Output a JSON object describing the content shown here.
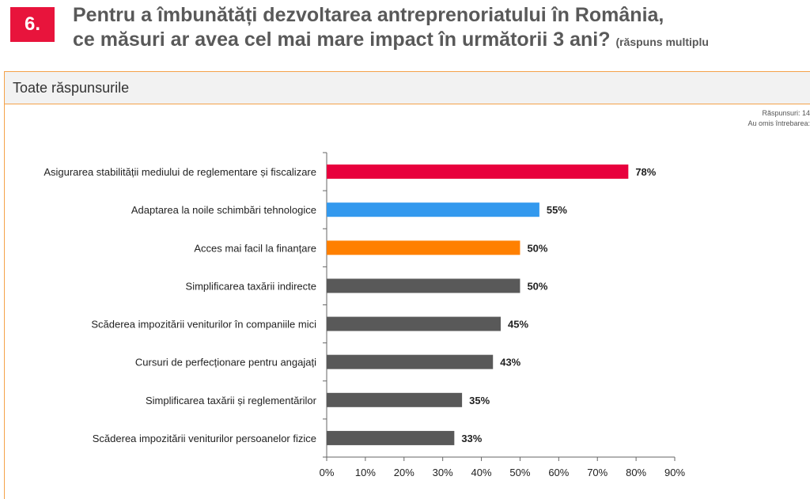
{
  "question": {
    "number": "6.",
    "title_line1": "Pentru a îmbunătăți dezvoltarea antreprenoriatului în România,",
    "title_line2": "ce măsuri ar avea cel mai mare impact în următorii 3 ani?",
    "title_note": "(răspuns multiplu"
  },
  "panel": {
    "header": "Toate răspunsurile",
    "stats_answers": "Răspunsuri: 14",
    "stats_omitted": "Au omis întrebarea:"
  },
  "chart_data": {
    "type": "bar",
    "orientation": "horizontal",
    "categories": [
      "Asigurarea stabilității mediului de reglementare și fiscalizare",
      "Adaptarea la noile schimbări tehnologice",
      "Acces mai facil la finanțare",
      "Simplificarea taxării indirecte",
      "Scăderea impozitării veniturilor în companiile mici",
      "Cursuri de perfecționare pentru angajați",
      "Simplificarea taxării și reglementărilor",
      "Scăderea impozitării veniturilor persoanelor fizice"
    ],
    "values": [
      78,
      55,
      50,
      50,
      45,
      43,
      35,
      33
    ],
    "value_labels": [
      "78%",
      "55%",
      "50%",
      "50%",
      "45%",
      "43%",
      "35%",
      "33%"
    ],
    "colors": [
      "#e8003d",
      "#3399ee",
      "#ff8000",
      "#595959",
      "#595959",
      "#595959",
      "#595959",
      "#595959"
    ],
    "xlim": [
      0,
      90
    ],
    "xticks": [
      0,
      10,
      20,
      30,
      40,
      50,
      60,
      70,
      80,
      90
    ],
    "xtick_labels": [
      "0%",
      "10%",
      "20%",
      "30%",
      "40%",
      "50%",
      "60%",
      "70%",
      "80%",
      "90%"
    ],
    "xlabel": "",
    "ylabel": "",
    "grid": false
  }
}
